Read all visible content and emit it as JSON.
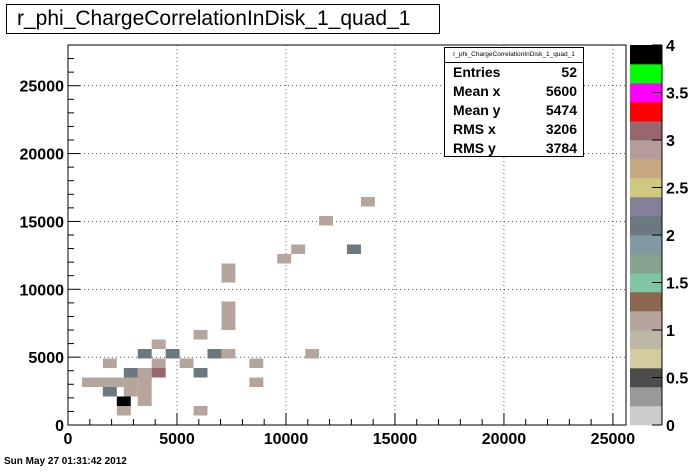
{
  "title": "r_phi_ChargeCorrelationInDisk_1_quad_1",
  "stats": {
    "name": "r_phi_ChargeCorrelationInDisk_1_quad_1",
    "rows": [
      {
        "label": "Entries",
        "value": "52"
      },
      {
        "label": "Mean x",
        "value": "5600"
      },
      {
        "label": "Mean y",
        "value": "5474"
      },
      {
        "label": "RMS x",
        "value": "3206"
      },
      {
        "label": "RMS y",
        "value": "3784"
      }
    ]
  },
  "timestamp": "Sun May 27 01:31:42 2012",
  "chart_data": {
    "type": "heatmap",
    "title": "r_phi_ChargeCorrelationInDisk_1_quad_1",
    "xlim": [
      0,
      25600
    ],
    "ylim": [
      0,
      28000
    ],
    "bin_size": [
      640,
      700
    ],
    "grid": true,
    "x_ticks": [
      "0",
      "5000",
      "10000",
      "15000",
      "20000",
      "25000"
    ],
    "y_ticks": [
      "0",
      "5000",
      "10000",
      "15000",
      "20000",
      "25000"
    ],
    "z_ticks": [
      "0",
      "0.5",
      "1",
      "1.5",
      "2",
      "2.5",
      "3",
      "3.5",
      "4"
    ],
    "zlim": [
      0,
      4
    ],
    "palette": [
      "#cccccc",
      "#999999",
      "#4d4d4d",
      "#d4cc9e",
      "#bdb8a3",
      "#b5a59c",
      "#8c6650",
      "#7fc7a3",
      "#85a38f",
      "#8099a3",
      "#6b7880",
      "#857f99",
      "#d1c980",
      "#c7a880",
      "#b59c9c",
      "#996670",
      "#ff0000",
      "#ff00ff",
      "#00ff00",
      "#000000"
    ],
    "cells": [
      {
        "x": 2240,
        "y": 1400,
        "z": 4
      },
      {
        "x": 2240,
        "y": 700,
        "z": 1
      },
      {
        "x": 5760,
        "y": 700,
        "z": 1
      },
      {
        "x": 1600,
        "y": 2100,
        "z": 2
      },
      {
        "x": 640,
        "y": 2800,
        "z": 1
      },
      {
        "x": 1280,
        "y": 2800,
        "z": 1
      },
      {
        "x": 1920,
        "y": 2800,
        "z": 1
      },
      {
        "x": 2560,
        "y": 2800,
        "z": 1
      },
      {
        "x": 3200,
        "y": 2800,
        "z": 1
      },
      {
        "x": 3200,
        "y": 2100,
        "z": 1
      },
      {
        "x": 3200,
        "y": 1400,
        "z": 1
      },
      {
        "x": 2560,
        "y": 2100,
        "z": 1
      },
      {
        "x": 8320,
        "y": 2800,
        "z": 1
      },
      {
        "x": 2560,
        "y": 3500,
        "z": 2
      },
      {
        "x": 3200,
        "y": 3500,
        "z": 1
      },
      {
        "x": 3840,
        "y": 3500,
        "z": 3
      },
      {
        "x": 5760,
        "y": 3500,
        "z": 2
      },
      {
        "x": 1600,
        "y": 4200,
        "z": 1
      },
      {
        "x": 3200,
        "y": 4900,
        "z": 2
      },
      {
        "x": 3840,
        "y": 4200,
        "z": 1
      },
      {
        "x": 4480,
        "y": 4900,
        "z": 2
      },
      {
        "x": 5120,
        "y": 4200,
        "z": 1
      },
      {
        "x": 6400,
        "y": 4900,
        "z": 2
      },
      {
        "x": 7040,
        "y": 4900,
        "z": 1
      },
      {
        "x": 8320,
        "y": 4200,
        "z": 1
      },
      {
        "x": 10880,
        "y": 4900,
        "z": 1
      },
      {
        "x": 3840,
        "y": 5600,
        "z": 1
      },
      {
        "x": 5760,
        "y": 6300,
        "z": 1
      },
      {
        "x": 7040,
        "y": 7000,
        "z": 1
      },
      {
        "x": 7040,
        "y": 7700,
        "z": 1
      },
      {
        "x": 7040,
        "y": 8400,
        "z": 1
      },
      {
        "x": 7040,
        "y": 10500,
        "z": 1
      },
      {
        "x": 7040,
        "y": 11200,
        "z": 1
      },
      {
        "x": 9600,
        "y": 11900,
        "z": 1
      },
      {
        "x": 10240,
        "y": 12600,
        "z": 1
      },
      {
        "x": 12800,
        "y": 12600,
        "z": 2
      },
      {
        "x": 11520,
        "y": 14700,
        "z": 1
      },
      {
        "x": 13440,
        "y": 16100,
        "z": 1
      }
    ]
  }
}
